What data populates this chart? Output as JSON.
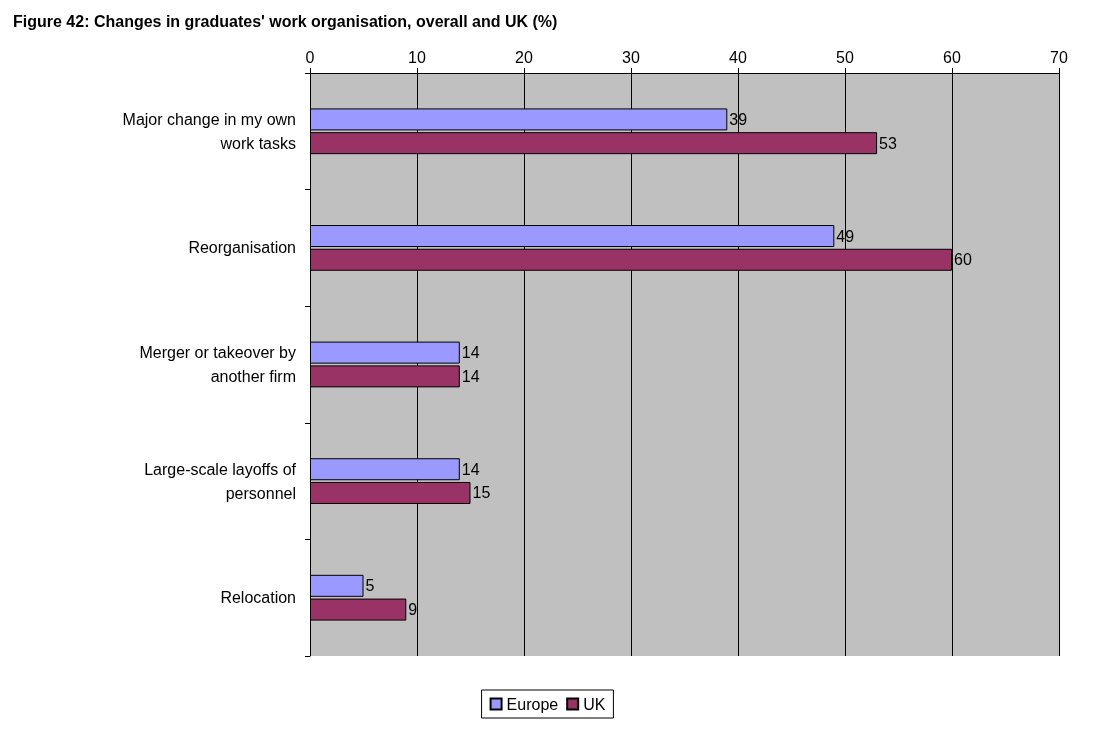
{
  "chart_data": {
    "type": "bar",
    "orientation": "horizontal",
    "title": "Figure 42: Changes in graduates' work organisation, overall and UK (%)",
    "categories": [
      "Major change in my own work tasks",
      "Reorganisation",
      "Merger or takeover by another firm",
      "Large-scale layoffs of personnel",
      "Relocation"
    ],
    "series": [
      {
        "name": "Europe",
        "color": "#9999ff",
        "values": [
          39,
          49,
          14,
          14,
          5
        ]
      },
      {
        "name": "UK",
        "color": "#993366",
        "values": [
          53,
          60,
          14,
          15,
          9
        ]
      }
    ],
    "xlim": [
      0,
      70
    ],
    "xticks": [
      0,
      10,
      20,
      30,
      40,
      50,
      60,
      70
    ],
    "grid": "x",
    "legend": "bottom",
    "data_labels": true
  }
}
